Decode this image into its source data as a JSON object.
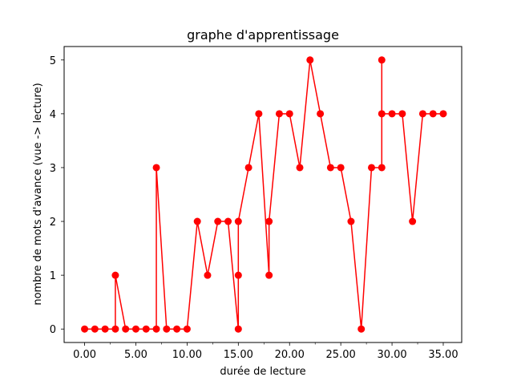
{
  "chart_data": {
    "type": "line",
    "title": "graphe d'apprentissage",
    "xlabel": "durée de lecture",
    "ylabel": "nombre de mots d'avance (vue -> lecture)",
    "xlim": [
      -2,
      36.8
    ],
    "ylim": [
      -0.25,
      5.25
    ],
    "xticks": [
      0,
      5,
      10,
      15,
      20,
      25,
      30,
      35
    ],
    "xtick_labels": [
      "0.00",
      "5.00",
      "10.00",
      "15.00",
      "20.00",
      "25.00",
      "30.00",
      "35.00"
    ],
    "x_minor_ticks": [
      2.5,
      7.5,
      12.5,
      17.5,
      22.5,
      27.5,
      32.5
    ],
    "yticks": [
      0,
      1,
      2,
      3,
      4,
      5
    ],
    "ytick_labels": [
      "0",
      "1",
      "2",
      "3",
      "4",
      "5"
    ],
    "grid": false,
    "legend": "none",
    "colors": {
      "series": "#ff0000",
      "axes": "#000000",
      "background": "#ffffff"
    },
    "series": [
      {
        "x": [
          0,
          1,
          2,
          3,
          3,
          4,
          5,
          6,
          7,
          7,
          8,
          9,
          10,
          11,
          12,
          13,
          14,
          15,
          15,
          15,
          16,
          17,
          18,
          18,
          19,
          20,
          21,
          22,
          23,
          24,
          25,
          26,
          27,
          28,
          29,
          29,
          29,
          30,
          31,
          32,
          33,
          34,
          35
        ],
        "y": [
          0,
          0,
          0,
          0,
          1,
          0,
          0,
          0,
          0,
          3,
          0,
          0,
          0,
          2,
          1,
          2,
          2,
          0,
          1,
          2,
          3,
          4,
          1,
          2,
          4,
          4,
          3,
          5,
          4,
          3,
          3,
          2,
          0,
          3,
          3,
          5,
          4,
          4,
          4,
          2,
          4,
          4,
          4
        ]
      }
    ]
  }
}
